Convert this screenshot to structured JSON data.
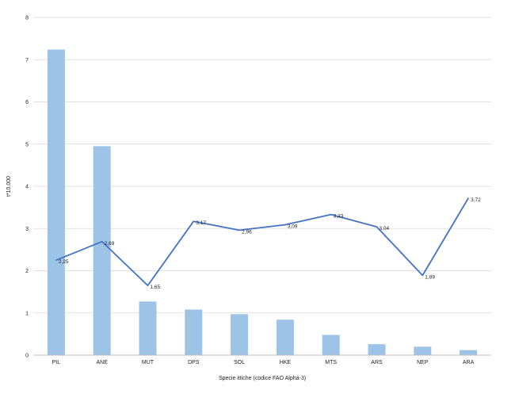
{
  "chart_data": {
    "type": "bar+line",
    "categories": [
      "PIL",
      "ANE",
      "MUT",
      "DPS",
      "SOL",
      "HKE",
      "MTS",
      "ARS",
      "NEP",
      "ARA"
    ],
    "series": [
      {
        "type": "bar",
        "values": [
          7.24,
          4.95,
          1.27,
          1.08,
          0.97,
          0.84,
          0.48,
          0.26,
          0.2,
          0.12
        ],
        "color": "#9dc3e6"
      },
      {
        "type": "line",
        "values": [
          2.25,
          2.69,
          1.65,
          3.17,
          2.96,
          3.09,
          3.33,
          3.04,
          1.89,
          3.72
        ],
        "labels": [
          "2,25",
          "2,69",
          "1,65",
          "3,17",
          "2,96",
          "3,09",
          "3,33",
          "3,04",
          "1,89",
          "3,72"
        ],
        "color": "#4472c4"
      }
    ],
    "xlabel": "Specie ittiche (codice FAO Alpha-3)",
    "ylabel": "t*10.000",
    "ylim": [
      0,
      8
    ],
    "yticks": [
      "0",
      "1",
      "2",
      "3",
      "4",
      "5",
      "6",
      "7",
      "8"
    ],
    "grid": true,
    "legend": "none"
  }
}
